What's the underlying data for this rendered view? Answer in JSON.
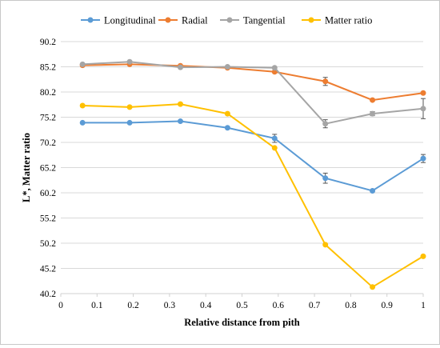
{
  "chart_data": {
    "type": "line",
    "title": "",
    "xlabel": "Relative distance from pith",
    "ylabel": "L*, Matter ratio",
    "xlim": [
      0,
      1
    ],
    "ylim": [
      40.2,
      90.2
    ],
    "x_ticks": [
      "0",
      "0.1",
      "0.2",
      "0.3",
      "0.4",
      "0.5",
      "0.6",
      "0.7",
      "0.8",
      "0.9",
      "1"
    ],
    "y_ticks": [
      "40.2",
      "45.2",
      "50.2",
      "55.2",
      "60.2",
      "65.2",
      "70.2",
      "75.2",
      "80.2",
      "85.2",
      "90.2"
    ],
    "legend_position": "top",
    "grid": "horizontal",
    "x": [
      0.06,
      0.19,
      0.33,
      0.46,
      0.59,
      0.73,
      0.86,
      1.0
    ],
    "series": [
      {
        "name": "Longitudinal",
        "color": "#5b9bd5",
        "values": [
          74.1,
          74.1,
          74.4,
          73.1,
          71.0,
          63.1,
          60.6,
          67.0
        ],
        "errors": [
          0,
          0,
          0,
          0,
          0.8,
          1.0,
          0,
          0.8
        ]
      },
      {
        "name": "Radial",
        "color": "#ed7d31",
        "values": [
          85.5,
          85.7,
          85.4,
          85.0,
          84.2,
          82.3,
          78.6,
          80.0
        ],
        "errors": [
          0,
          0,
          0,
          0,
          0,
          0.8,
          0,
          0
        ]
      },
      {
        "name": "Tangential",
        "color": "#a5a5a5",
        "values": [
          85.7,
          86.2,
          85.1,
          85.2,
          85.0,
          73.9,
          75.9,
          76.9
        ],
        "errors": [
          0,
          0,
          0,
          0,
          0,
          0.8,
          0.4,
          2.0
        ]
      },
      {
        "name": "Matter ratio",
        "color": "#ffc000",
        "values": [
          77.5,
          77.2,
          77.8,
          75.9,
          69.1,
          49.9,
          41.5,
          47.6
        ],
        "errors": [
          0,
          0,
          0,
          0,
          0,
          0,
          0,
          0
        ]
      }
    ]
  }
}
